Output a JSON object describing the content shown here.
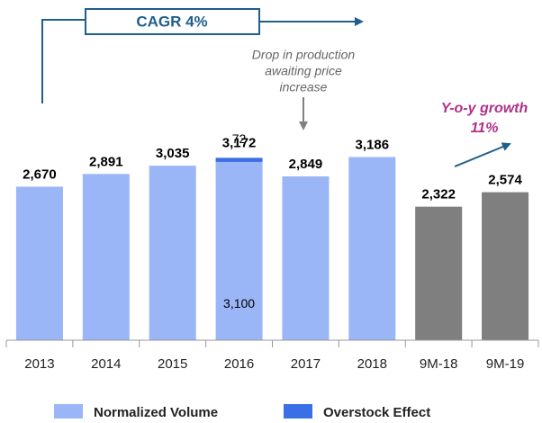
{
  "chart_data": {
    "type": "stacked_bar",
    "categories": [
      "2013",
      "2014",
      "2015",
      "2016",
      "2017",
      "2018",
      "9M-18",
      "9M-19"
    ],
    "series": [
      {
        "name": "Normalized Volume",
        "color": "#9ab6f6",
        "colors": [
          "#9ab6f6",
          "#9ab6f6",
          "#9ab6f6",
          "#9ab6f6",
          "#9ab6f6",
          "#9ab6f6",
          "#7f7f7f",
          "#7f7f7f"
        ],
        "values": [
          2670,
          2891,
          3035,
          3100,
          2849,
          3186,
          2322,
          2574
        ],
        "value_labels": [
          "2,670",
          "2,891",
          "3,035",
          "3,100",
          "2,849",
          "3,186",
          "2,322",
          "2,574"
        ]
      },
      {
        "name": "Overstock Effect",
        "color": "#3b6fe6",
        "values": [
          null,
          null,
          null,
          72,
          null,
          null,
          null,
          null
        ],
        "value_labels": [
          null,
          null,
          null,
          "72",
          null,
          null,
          null,
          null
        ]
      }
    ],
    "total": {
      "category": 3,
      "value": 3172,
      "label": "3,172"
    },
    "ylim": [
      0,
      3600
    ],
    "annotations": [
      {
        "text": "CAGR 4%"
      },
      {
        "lines": [
          "Drop in production",
          "awaiting price",
          "increase"
        ]
      },
      {
        "lines": [
          "Y-o-y growth",
          "11%"
        ]
      }
    ]
  }
}
